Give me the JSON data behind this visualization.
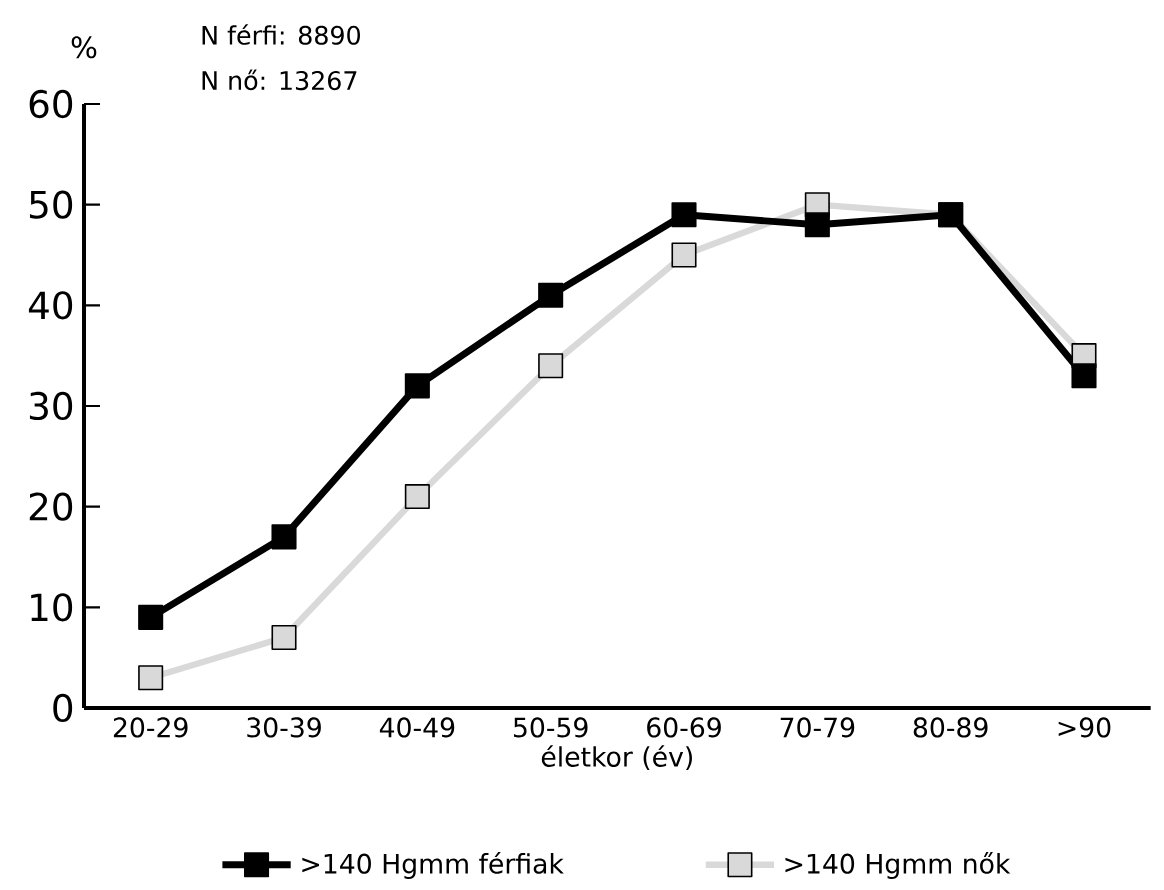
{
  "chart_data": {
    "type": "line",
    "ylabel": "%",
    "xlabel": "életkor (év)",
    "annotations": [
      "N férfi: 8890",
      "N nő: 13267"
    ],
    "categories": [
      "20-29",
      "30-39",
      "40-49",
      "50-59",
      "60-69",
      "70-79",
      "80-89",
      ">90"
    ],
    "series": [
      {
        "name": ">140 Hgmm férfiak",
        "color": "#000000",
        "values": [
          9,
          17,
          32,
          41,
          49,
          48,
          49,
          33
        ]
      },
      {
        "name": ">140 Hgmm nők",
        "color": "#d9d9d9",
        "values": [
          3,
          7,
          21,
          34,
          45,
          50,
          49,
          35
        ]
      }
    ],
    "ylim": [
      0,
      60
    ],
    "yticks": [
      0,
      10,
      20,
      30,
      40,
      50,
      60
    ],
    "grid": false,
    "legend": "bottom",
    "marker": "square",
    "line_style": "solid"
  }
}
